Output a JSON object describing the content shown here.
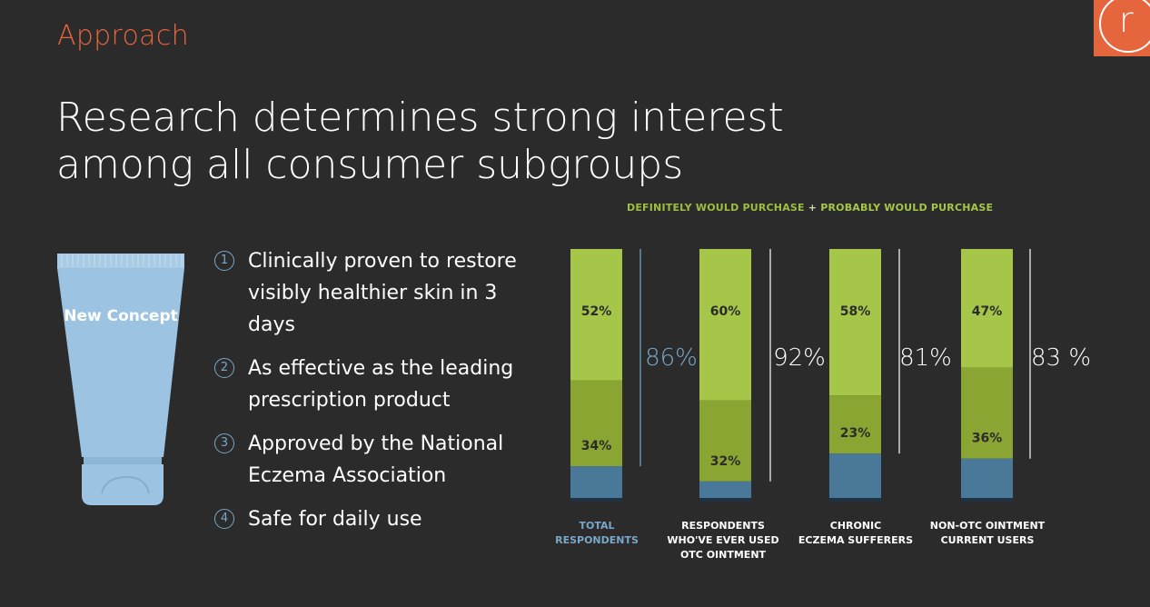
{
  "section_label": "Approach",
  "logo_letter": "r",
  "headline": "Research determines strong interest among all consumer subgroups",
  "tube_label": "New Concept",
  "bullets": [
    {
      "num": "1",
      "text": "Clinically proven to restore visibly healthier skin in 3 days"
    },
    {
      "num": "2",
      "text": "As effective as the leading prescription product"
    },
    {
      "num": "3",
      "text": "Approved by the National Eczema Association"
    },
    {
      "num": "4",
      "text": "Safe for daily use"
    }
  ],
  "colors": {
    "background": "#2b2b2b",
    "accent": "#e5653d",
    "definitely": "#8aa532",
    "probably": "#a6c64a",
    "blue": "#4a7898",
    "navy": "#1d3344",
    "total_label": "#7aa7c7"
  },
  "chart_data": {
    "type": "bar",
    "stacked": true,
    "legend": {
      "definitely": "DEFINITELY WOULD PURCHASE",
      "plus": "+",
      "probably": "PROBABLY WOULD PURCHASE"
    },
    "categories": [
      [
        "TOTAL",
        "RESPONDENTS"
      ],
      [
        "RESPONDENTS",
        "WHO'VE EVER USED",
        "OTC OINTMENT"
      ],
      [
        "CHRONIC",
        "ECZEMA SUFFERERS"
      ],
      [
        "NON-OTC OINTMENT",
        "CURRENT USERS"
      ]
    ],
    "series": [
      {
        "name": "DEFINITELY WOULD PURCHASE",
        "values": [
          34,
          32,
          23,
          36
        ],
        "labels": [
          "34%",
          "32%",
          "23%",
          "36%"
        ]
      },
      {
        "name": "PROBABLY WOULD PURCHASE",
        "values": [
          52,
          60,
          58,
          47
        ],
        "labels": [
          "52%",
          "60%",
          "58%",
          "47%"
        ]
      }
    ],
    "totals": [
      "86%",
      "92%",
      "81%",
      "83 %"
    ],
    "ylim": [
      0,
      100
    ]
  }
}
